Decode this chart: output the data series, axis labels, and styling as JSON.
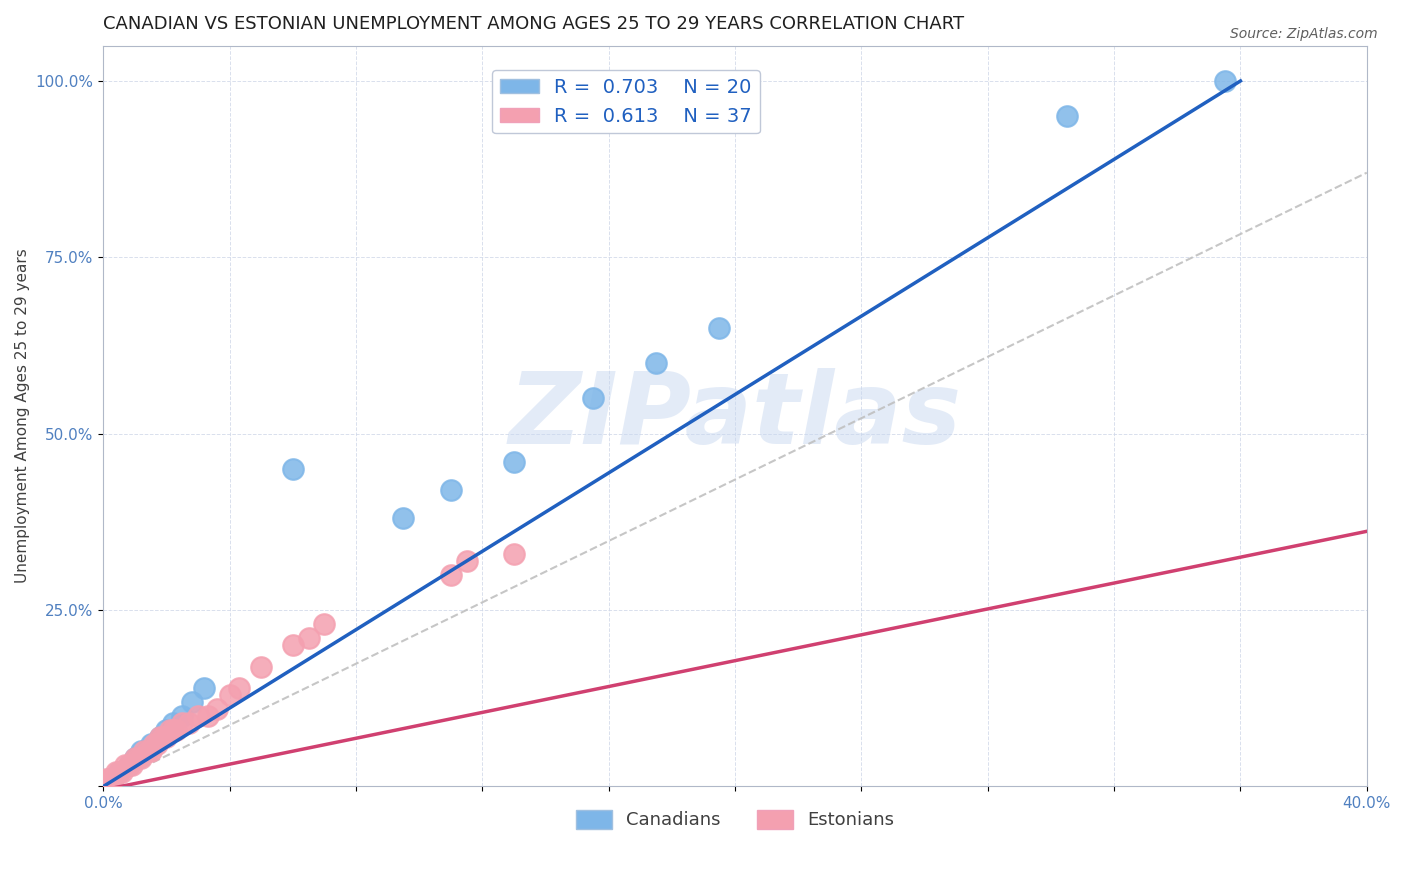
{
  "title": "CANADIAN VS ESTONIAN UNEMPLOYMENT AMONG AGES 25 TO 29 YEARS CORRELATION CHART",
  "source": "Source: ZipAtlas.com",
  "xlabel": "",
  "ylabel": "Unemployment Among Ages 25 to 29 years",
  "xlim": [
    0.0,
    0.4
  ],
  "ylim": [
    0.0,
    1.05
  ],
  "xticks": [
    0.0,
    0.04,
    0.08,
    0.12,
    0.16,
    0.2,
    0.24,
    0.28,
    0.32,
    0.36,
    0.4
  ],
  "xtick_labels": [
    "0.0%",
    "",
    "",
    "",
    "",
    "",
    "",
    "",
    "",
    "",
    "40.0%"
  ],
  "yticks": [
    0.0,
    0.25,
    0.5,
    0.75,
    1.0
  ],
  "ytick_labels": [
    "",
    "25.0%",
    "50.0%",
    "75.0%",
    "100.0%"
  ],
  "canadian_x": [
    0.005,
    0.008,
    0.01,
    0.012,
    0.015,
    0.018,
    0.02,
    0.022,
    0.025,
    0.028,
    0.032,
    0.06,
    0.095,
    0.11,
    0.13,
    0.155,
    0.175,
    0.195,
    0.305,
    0.355
  ],
  "canadian_y": [
    0.02,
    0.03,
    0.04,
    0.05,
    0.06,
    0.07,
    0.08,
    0.09,
    0.1,
    0.12,
    0.14,
    0.45,
    0.38,
    0.42,
    0.46,
    0.55,
    0.6,
    0.65,
    0.95,
    1.0
  ],
  "estonian_x": [
    0.001,
    0.002,
    0.003,
    0.004,
    0.005,
    0.006,
    0.007,
    0.008,
    0.009,
    0.01,
    0.011,
    0.012,
    0.013,
    0.014,
    0.015,
    0.016,
    0.017,
    0.018,
    0.019,
    0.02,
    0.021,
    0.022,
    0.023,
    0.025,
    0.027,
    0.03,
    0.033,
    0.036,
    0.04,
    0.043,
    0.05,
    0.06,
    0.065,
    0.07,
    0.11,
    0.115,
    0.13
  ],
  "estonian_y": [
    0.01,
    0.01,
    0.01,
    0.02,
    0.02,
    0.02,
    0.03,
    0.03,
    0.03,
    0.04,
    0.04,
    0.04,
    0.05,
    0.05,
    0.05,
    0.06,
    0.06,
    0.07,
    0.07,
    0.07,
    0.08,
    0.08,
    0.08,
    0.09,
    0.09,
    0.1,
    0.1,
    0.11,
    0.13,
    0.14,
    0.17,
    0.2,
    0.21,
    0.23,
    0.3,
    0.32,
    0.33
  ],
  "canadian_color": "#7EB6E8",
  "estonian_color": "#F4A0B0",
  "canadian_line_color": "#2060C0",
  "estonian_line_color": "#D04070",
  "ref_line_color": "#C0C0C0",
  "r_canadian": 0.703,
  "n_canadian": 20,
  "r_estonian": 0.613,
  "n_estonian": 37,
  "watermark": "ZIPatlas",
  "watermark_color": "#C8D8F0",
  "title_fontsize": 13,
  "axis_label_fontsize": 11,
  "tick_fontsize": 11,
  "legend_fontsize": 14
}
